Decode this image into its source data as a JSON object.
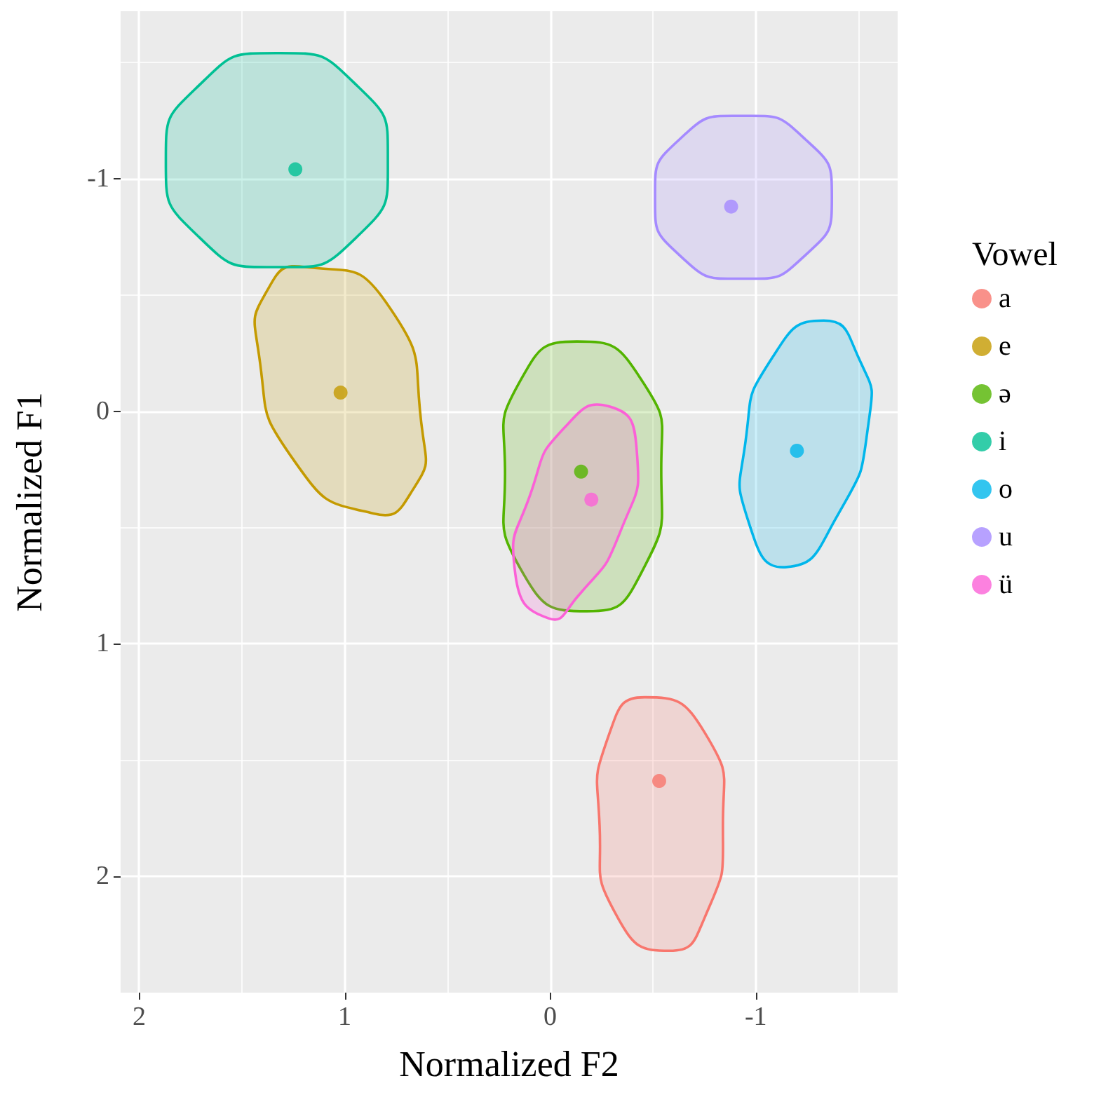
{
  "chart_data": {
    "type": "scatter",
    "xlabel": "Normalized F2",
    "ylabel": "Normalized F1",
    "legend_title": "Vowel",
    "xlim": [
      2.09,
      -1.69
    ],
    "xticks": [
      2,
      1,
      0,
      -1
    ],
    "ylim": [
      2.5,
      -1.72
    ],
    "yticks": [
      -1,
      0,
      1,
      2
    ],
    "grid": true,
    "legend": "right",
    "marker": "circle",
    "series": [
      {
        "type": "area",
        "marker": "none",
        "color": "#f8766d",
        "x": [
          -0.46,
          -0.75,
          -0.84,
          -0.75,
          -0.58,
          -0.33,
          -0.24,
          -0.29
        ],
        "values": [
          1.23,
          1.38,
          1.78,
          2.18,
          2.32,
          2.18,
          1.78,
          1.38
        ]
      },
      {
        "type": "area",
        "marker": "none",
        "color": "#c49a00",
        "x": [
          1.19,
          0.8,
          0.62,
          0.67,
          0.86,
          1.24,
          1.42,
          1.37
        ],
        "values": [
          -0.62,
          -0.47,
          0.1,
          0.34,
          0.44,
          0.22,
          -0.26,
          -0.53
        ]
      },
      {
        "type": "area",
        "marker": "none",
        "color": "#53b400",
        "x": [
          -0.13,
          -0.44,
          -0.54,
          -0.44,
          -0.18,
          0.13,
          0.22,
          0.14
        ],
        "values": [
          -0.3,
          -0.14,
          0.25,
          0.7,
          0.86,
          0.7,
          0.25,
          -0.14
        ]
      },
      {
        "type": "area",
        "marker": "none",
        "color": "#00c094",
        "x": [
          0.79,
          0.94,
          1.33,
          1.71,
          1.87,
          1.71,
          1.33,
          0.94
        ],
        "values": [
          -1.08,
          -1.4,
          -1.54,
          -1.4,
          -1.08,
          -0.75,
          -0.62,
          -0.75
        ]
      },
      {
        "type": "area",
        "marker": "none",
        "color": "#00b6eb",
        "x": [
          -1.33,
          -1.5,
          -1.55,
          -1.39,
          -1.15,
          -0.97,
          -0.95,
          -1.08
        ],
        "values": [
          -0.39,
          -0.23,
          0.04,
          0.46,
          0.67,
          0.49,
          0.13,
          -0.23
        ]
      },
      {
        "type": "area",
        "marker": "none",
        "color": "#a58aff",
        "x": [
          -1.37,
          -1.24,
          -0.94,
          -0.63,
          -0.51,
          -0.63,
          -0.94,
          -1.24
        ],
        "values": [
          -0.92,
          -1.17,
          -1.27,
          -1.17,
          -0.92,
          -0.67,
          -0.57,
          -0.67
        ]
      },
      {
        "type": "area",
        "marker": "none",
        "color": "#fb61d7",
        "x": [
          -0.29,
          -0.42,
          -0.34,
          -0.13,
          0.01,
          0.17,
          0.09,
          -0.07
        ],
        "values": [
          -0.02,
          0.16,
          0.52,
          0.8,
          0.89,
          0.7,
          0.34,
          0.07
        ]
      },
      {
        "name": "a",
        "color": "#f8766d",
        "x": [
          -0.53
        ],
        "values": [
          1.59
        ]
      },
      {
        "name": "e",
        "color": "#c49a00",
        "x": [
          1.02
        ],
        "values": [
          -0.08
        ]
      },
      {
        "name": "ə",
        "color": "#53b400",
        "x": [
          -0.15
        ],
        "values": [
          0.26
        ]
      },
      {
        "name": "i",
        "color": "#00c094",
        "x": [
          1.24
        ],
        "values": [
          -1.04
        ]
      },
      {
        "name": "o",
        "color": "#00b6eb",
        "x": [
          -1.2
        ],
        "values": [
          0.17
        ]
      },
      {
        "name": "u",
        "color": "#a58aff",
        "x": [
          -0.88
        ],
        "values": [
          -0.88
        ]
      },
      {
        "name": "ü",
        "color": "#fb61d7",
        "x": [
          -0.2
        ],
        "values": [
          0.38
        ]
      }
    ]
  }
}
